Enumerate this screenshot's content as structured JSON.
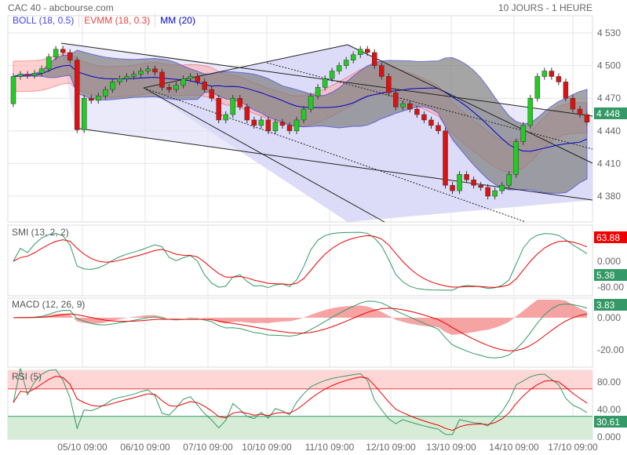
{
  "header": {
    "title": "CAC 40 - abcbourse.com",
    "period": "10 JOURS - 1 HEURE"
  },
  "legend": {
    "boll": "BOLL (18, 0.5)",
    "evmm": "EVMM (18, 0.3)",
    "mm": "MM (20)"
  },
  "colors": {
    "up": "#22cc22",
    "down": "#dd1111",
    "boll": "#3333cc",
    "evmm": "#ee4444",
    "mm": "#0000cc",
    "badge_green": "#339966",
    "badge_red": "#ee0000",
    "channel": "#d8d8f8"
  },
  "chart_data": [
    {
      "type": "candlestick",
      "title": "CAC 40",
      "ylim": [
        4360,
        4540
      ],
      "yticks": [
        "4 530",
        "4 500",
        "4 470",
        "4 440",
        "4 410",
        "4 380"
      ],
      "ytick_values": [
        4530,
        4500,
        4470,
        4440,
        4410,
        4380
      ],
      "last_value": "4 448",
      "closes": [
        4490,
        4492,
        4491,
        4493,
        4497,
        4508,
        4515,
        4512,
        4505,
        4441,
        4470,
        4468,
        4472,
        4478,
        4485,
        4488,
        4490,
        4492,
        4495,
        4497,
        4494,
        4480,
        4478,
        4482,
        4488,
        4490,
        4485,
        4478,
        4470,
        4450,
        4455,
        4470,
        4462,
        4450,
        4445,
        4450,
        4440,
        4448,
        4445,
        4440,
        4450,
        4460,
        4472,
        4480,
        4488,
        4495,
        4500,
        4505,
        4510,
        4515,
        4512,
        4500,
        4490,
        4475,
        4462,
        4465,
        4460,
        4455,
        4450,
        4445,
        4440,
        4390,
        4385,
        4400,
        4395,
        4390,
        4388,
        4380,
        4385,
        4390,
        4400,
        4430,
        4445,
        4470,
        4490,
        4495,
        4490,
        4485,
        4470,
        4460,
        4455,
        4448
      ],
      "xlabels": [
        "05/10 09:00",
        "06/10 09:00",
        "07/10 09:00",
        "10/10 09:00",
        "11/10 09:00",
        "12/10 09:00",
        "13/10 09:00",
        "14/10 09:00",
        "17/10 09:00"
      ]
    },
    {
      "type": "line",
      "title": "SMI (13, 2, 2)",
      "yticks": [
        "0.000",
        "-80.00"
      ],
      "ytick_values": [
        0,
        -80
      ],
      "badges": [
        "63.88",
        "5.38"
      ]
    },
    {
      "type": "line",
      "title": "MACD (12, 26, 9)",
      "yticks": [
        "0.000",
        "-20.00"
      ],
      "ytick_values": [
        0,
        -20
      ],
      "badges": [
        "3.83"
      ]
    },
    {
      "type": "line",
      "title": "RSI (5)",
      "yticks": [
        "80.00",
        "40.00",
        "0.000"
      ],
      "ytick_values": [
        80,
        40,
        0
      ],
      "badges": [
        "30.61"
      ]
    }
  ]
}
